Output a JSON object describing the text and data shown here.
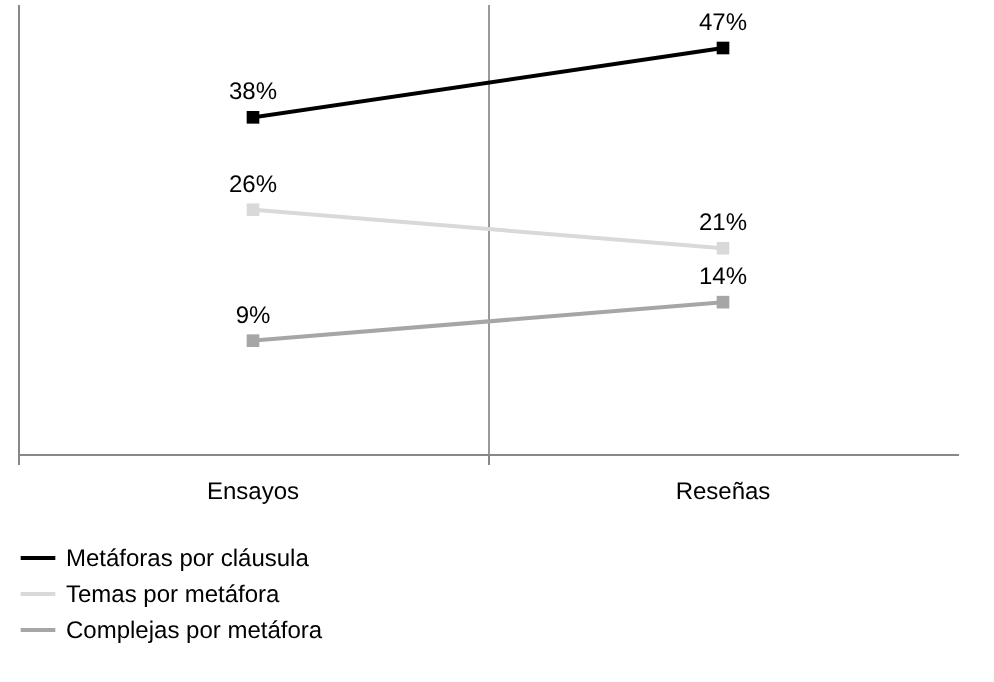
{
  "chart_data": {
    "type": "line",
    "categories": [
      "Ensayos",
      "Reseñas"
    ],
    "series": [
      {
        "name": "Metáforas por cláusula",
        "color": "#000000",
        "values": [
          38,
          47
        ],
        "value_labels": [
          "38%",
          "47%"
        ]
      },
      {
        "name": "Temas por metáfora",
        "color": "#d9d9d9",
        "values": [
          26,
          21
        ],
        "value_labels": [
          "26%",
          "21%"
        ]
      },
      {
        "name": "Complejas por metáfora",
        "color": "#a6a6a6",
        "values": [
          9,
          14
        ],
        "value_labels": [
          "9%",
          "14%"
        ]
      }
    ],
    "relative": false,
    "grid": "x",
    "legend": "bottom",
    "marker": "square",
    "line_style": "solid"
  }
}
